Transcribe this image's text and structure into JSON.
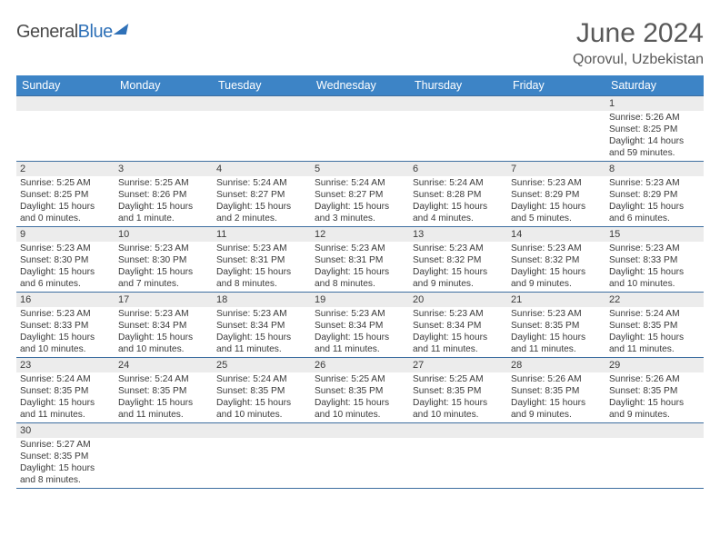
{
  "brand": {
    "part1": "General",
    "part2": "Blue"
  },
  "title": "June 2024",
  "location": "Qorovul, Uzbekistan",
  "colors": {
    "header_bg": "#3d84c6",
    "header_text": "#ffffff",
    "cell_border": "#3d6ea0",
    "daynum_bg": "#ececec",
    "text": "#3a3a3a",
    "title_text": "#595959",
    "brand_gray": "#4a4a4a",
    "brand_blue": "#2f71b8"
  },
  "dayHeaders": [
    "Sunday",
    "Monday",
    "Tuesday",
    "Wednesday",
    "Thursday",
    "Friday",
    "Saturday"
  ],
  "weeks": [
    [
      null,
      null,
      null,
      null,
      null,
      null,
      {
        "n": "1",
        "sr": "5:26 AM",
        "ss": "8:25 PM",
        "dl": "14 hours and 59 minutes."
      }
    ],
    [
      {
        "n": "2",
        "sr": "5:25 AM",
        "ss": "8:25 PM",
        "dl": "15 hours and 0 minutes."
      },
      {
        "n": "3",
        "sr": "5:25 AM",
        "ss": "8:26 PM",
        "dl": "15 hours and 1 minute."
      },
      {
        "n": "4",
        "sr": "5:24 AM",
        "ss": "8:27 PM",
        "dl": "15 hours and 2 minutes."
      },
      {
        "n": "5",
        "sr": "5:24 AM",
        "ss": "8:27 PM",
        "dl": "15 hours and 3 minutes."
      },
      {
        "n": "6",
        "sr": "5:24 AM",
        "ss": "8:28 PM",
        "dl": "15 hours and 4 minutes."
      },
      {
        "n": "7",
        "sr": "5:23 AM",
        "ss": "8:29 PM",
        "dl": "15 hours and 5 minutes."
      },
      {
        "n": "8",
        "sr": "5:23 AM",
        "ss": "8:29 PM",
        "dl": "15 hours and 6 minutes."
      }
    ],
    [
      {
        "n": "9",
        "sr": "5:23 AM",
        "ss": "8:30 PM",
        "dl": "15 hours and 6 minutes."
      },
      {
        "n": "10",
        "sr": "5:23 AM",
        "ss": "8:30 PM",
        "dl": "15 hours and 7 minutes."
      },
      {
        "n": "11",
        "sr": "5:23 AM",
        "ss": "8:31 PM",
        "dl": "15 hours and 8 minutes."
      },
      {
        "n": "12",
        "sr": "5:23 AM",
        "ss": "8:31 PM",
        "dl": "15 hours and 8 minutes."
      },
      {
        "n": "13",
        "sr": "5:23 AM",
        "ss": "8:32 PM",
        "dl": "15 hours and 9 minutes."
      },
      {
        "n": "14",
        "sr": "5:23 AM",
        "ss": "8:32 PM",
        "dl": "15 hours and 9 minutes."
      },
      {
        "n": "15",
        "sr": "5:23 AM",
        "ss": "8:33 PM",
        "dl": "15 hours and 10 minutes."
      }
    ],
    [
      {
        "n": "16",
        "sr": "5:23 AM",
        "ss": "8:33 PM",
        "dl": "15 hours and 10 minutes."
      },
      {
        "n": "17",
        "sr": "5:23 AM",
        "ss": "8:34 PM",
        "dl": "15 hours and 10 minutes."
      },
      {
        "n": "18",
        "sr": "5:23 AM",
        "ss": "8:34 PM",
        "dl": "15 hours and 11 minutes."
      },
      {
        "n": "19",
        "sr": "5:23 AM",
        "ss": "8:34 PM",
        "dl": "15 hours and 11 minutes."
      },
      {
        "n": "20",
        "sr": "5:23 AM",
        "ss": "8:34 PM",
        "dl": "15 hours and 11 minutes."
      },
      {
        "n": "21",
        "sr": "5:23 AM",
        "ss": "8:35 PM",
        "dl": "15 hours and 11 minutes."
      },
      {
        "n": "22",
        "sr": "5:24 AM",
        "ss": "8:35 PM",
        "dl": "15 hours and 11 minutes."
      }
    ],
    [
      {
        "n": "23",
        "sr": "5:24 AM",
        "ss": "8:35 PM",
        "dl": "15 hours and 11 minutes."
      },
      {
        "n": "24",
        "sr": "5:24 AM",
        "ss": "8:35 PM",
        "dl": "15 hours and 11 minutes."
      },
      {
        "n": "25",
        "sr": "5:24 AM",
        "ss": "8:35 PM",
        "dl": "15 hours and 10 minutes."
      },
      {
        "n": "26",
        "sr": "5:25 AM",
        "ss": "8:35 PM",
        "dl": "15 hours and 10 minutes."
      },
      {
        "n": "27",
        "sr": "5:25 AM",
        "ss": "8:35 PM",
        "dl": "15 hours and 10 minutes."
      },
      {
        "n": "28",
        "sr": "5:26 AM",
        "ss": "8:35 PM",
        "dl": "15 hours and 9 minutes."
      },
      {
        "n": "29",
        "sr": "5:26 AM",
        "ss": "8:35 PM",
        "dl": "15 hours and 9 minutes."
      }
    ],
    [
      {
        "n": "30",
        "sr": "5:27 AM",
        "ss": "8:35 PM",
        "dl": "15 hours and 8 minutes."
      },
      null,
      null,
      null,
      null,
      null,
      null
    ]
  ],
  "labels": {
    "sunrise": "Sunrise: ",
    "sunset": "Sunset: ",
    "daylight": "Daylight: "
  }
}
